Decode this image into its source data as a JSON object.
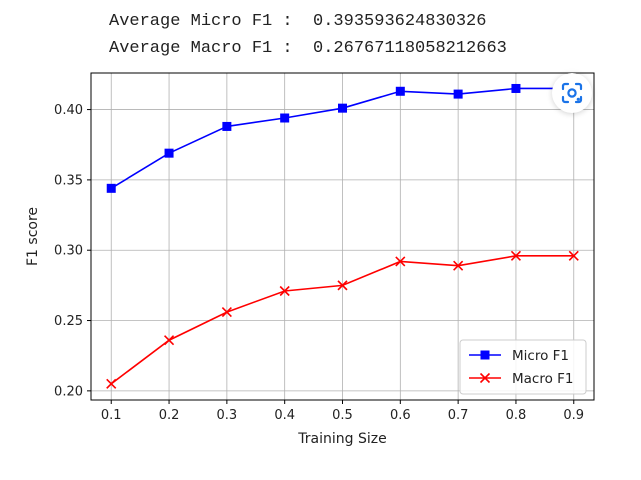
{
  "console": {
    "line1": "Average Micro F1 :  0.393593624830326",
    "line2": "Average Macro F1 :  0.26767118058212663"
  },
  "chart_data": {
    "type": "line",
    "title": "",
    "xlabel": "Training Size",
    "ylabel": "F1 score",
    "x": [
      0.1,
      0.2,
      0.3,
      0.4,
      0.5,
      0.6,
      0.7,
      0.8,
      0.9
    ],
    "xticks": [
      "0.1",
      "0.2",
      "0.3",
      "0.4",
      "0.5",
      "0.6",
      "0.7",
      "0.8",
      "0.9"
    ],
    "yticks": [
      "0.20",
      "0.25",
      "0.30",
      "0.35",
      "0.40"
    ],
    "ytick_values": [
      0.2,
      0.25,
      0.3,
      0.35,
      0.4
    ],
    "xlim": [
      0.065,
      0.935
    ],
    "ylim": [
      0.1935,
      0.426
    ],
    "grid": true,
    "legend": "lower-right",
    "series": [
      {
        "name": "Micro F1",
        "color": "#0000ff",
        "marker": "square",
        "values": [
          0.344,
          0.369,
          0.388,
          0.394,
          0.401,
          0.413,
          0.411,
          0.415,
          0.415
        ]
      },
      {
        "name": "Macro F1",
        "color": "#ff0000",
        "marker": "x",
        "values": [
          0.205,
          0.236,
          0.256,
          0.271,
          0.275,
          0.292,
          0.289,
          0.296,
          0.296
        ]
      }
    ]
  },
  "lens_icon": "google-lens-icon"
}
